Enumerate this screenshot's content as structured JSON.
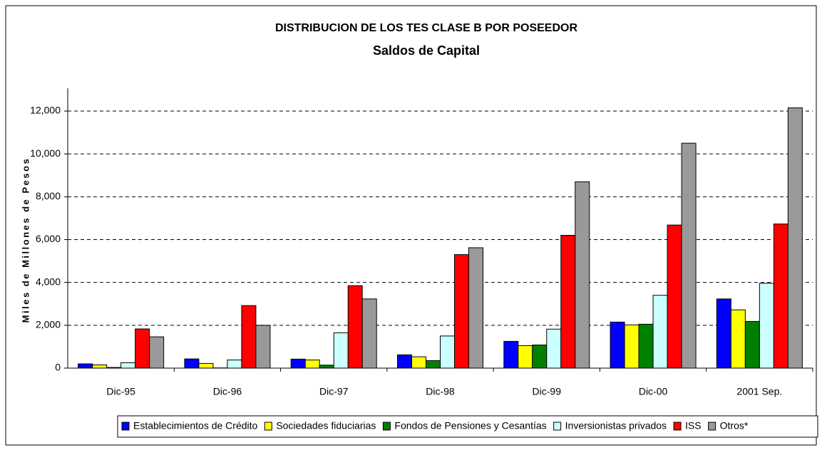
{
  "chart_data": {
    "type": "bar",
    "title": "DISTRIBUCION DE LOS TES CLASE B POR POSEEDOR",
    "subtitle": "Saldos de Capital",
    "y_label": "Miles de Millones de Pesos",
    "categories": [
      "Dic-95",
      "Dic-96",
      "Dic-97",
      "Dic-98",
      "Dic-99",
      "Dic-00",
      "2001 Sep."
    ],
    "series": [
      {
        "name": "Establecimientos de Crédito",
        "color": "#0000ff",
        "values": [
          200,
          430,
          420,
          620,
          1250,
          2150,
          3230
        ]
      },
      {
        "name": "Sociedades fiduciarias",
        "color": "#ffff00",
        "values": [
          150,
          220,
          380,
          530,
          1050,
          2020,
          2720
        ]
      },
      {
        "name": "Fondos de Pensiones y Cesantías",
        "color": "#008000",
        "values": [
          30,
          10,
          140,
          350,
          1080,
          2050,
          2180
        ]
      },
      {
        "name": "Inversionistas privados",
        "color": "#ccffff",
        "values": [
          250,
          380,
          1650,
          1500,
          1820,
          3400,
          3960
        ]
      },
      {
        "name": "ISS",
        "color": "#ff0000",
        "values": [
          1830,
          2920,
          3850,
          5300,
          6200,
          6680,
          6730
        ]
      },
      {
        "name": "Otros*",
        "color": "#999999",
        "values": [
          1460,
          2000,
          3230,
          5620,
          8700,
          10500,
          12150
        ]
      }
    ],
    "ylim": [
      0,
      12000
    ],
    "yticks": [
      0,
      {
        "value": 2000,
        "label": "2,000"
      },
      {
        "value": 4000,
        "label": "4,000"
      },
      {
        "value": 6000,
        "label": "6,000"
      },
      {
        "value": 8000,
        "label": "8,000"
      },
      {
        "value": 10000,
        "label": "10,000"
      },
      {
        "value": 12000,
        "label": "12,000"
      }
    ],
    "grid": true,
    "legend": "bottom"
  }
}
